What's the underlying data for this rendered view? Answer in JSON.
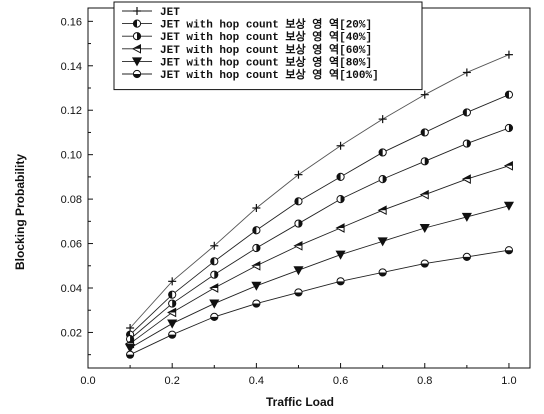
{
  "chart_data": {
    "type": "line",
    "title": "",
    "xlabel": "Traffic Load",
    "ylabel": "Blocking Probability",
    "xlim": [
      0.0,
      1.05
    ],
    "ylim": [
      0.004,
      0.166
    ],
    "xticks": [
      0.0,
      0.2,
      0.4,
      0.6,
      0.8,
      1.0
    ],
    "xtick_labels": [
      "0.0",
      "0.2",
      "0.4",
      "0.6",
      "0.8",
      "1.0"
    ],
    "yticks": [
      0.02,
      0.04,
      0.06,
      0.08,
      0.1,
      0.12,
      0.14,
      0.16
    ],
    "ytick_labels": [
      "0.02",
      "0.04",
      "0.06",
      "0.08",
      "0.10",
      "0.12",
      "0.14",
      "0.16"
    ],
    "grid": false,
    "legend_position": "top-left",
    "x": [
      0.1,
      0.2,
      0.3,
      0.4,
      0.5,
      0.6,
      0.7,
      0.8,
      0.9,
      1.0
    ],
    "series": [
      {
        "name": "JET",
        "marker": "plus",
        "values": [
          0.022,
          0.043,
          0.059,
          0.076,
          0.091,
          0.104,
          0.116,
          0.127,
          0.137,
          0.145
        ]
      },
      {
        "name": "JET with hop count 보상 영 역[20%]",
        "marker": "circle-left",
        "values": [
          0.019,
          0.037,
          0.052,
          0.066,
          0.079,
          0.09,
          0.101,
          0.11,
          0.119,
          0.127
        ]
      },
      {
        "name": "JET with hop count 보상 영 역[40%]",
        "marker": "circle-right",
        "values": [
          0.017,
          0.033,
          0.046,
          0.058,
          0.069,
          0.08,
          0.089,
          0.097,
          0.105,
          0.112
        ]
      },
      {
        "name": "JET with hop count 보상 영 역[60%]",
        "marker": "triangle-left",
        "values": [
          0.015,
          0.029,
          0.04,
          0.05,
          0.059,
          0.067,
          0.075,
          0.082,
          0.089,
          0.095
        ]
      },
      {
        "name": "JET with hop count 보상 영 역[80%]",
        "marker": "triangle-down",
        "values": [
          0.013,
          0.024,
          0.033,
          0.041,
          0.048,
          0.055,
          0.061,
          0.067,
          0.072,
          0.077
        ]
      },
      {
        "name": "JET with hop count 보상 영 역[100%]",
        "marker": "circle-half",
        "values": [
          0.01,
          0.019,
          0.027,
          0.033,
          0.038,
          0.043,
          0.047,
          0.051,
          0.054,
          0.057
        ]
      }
    ]
  }
}
